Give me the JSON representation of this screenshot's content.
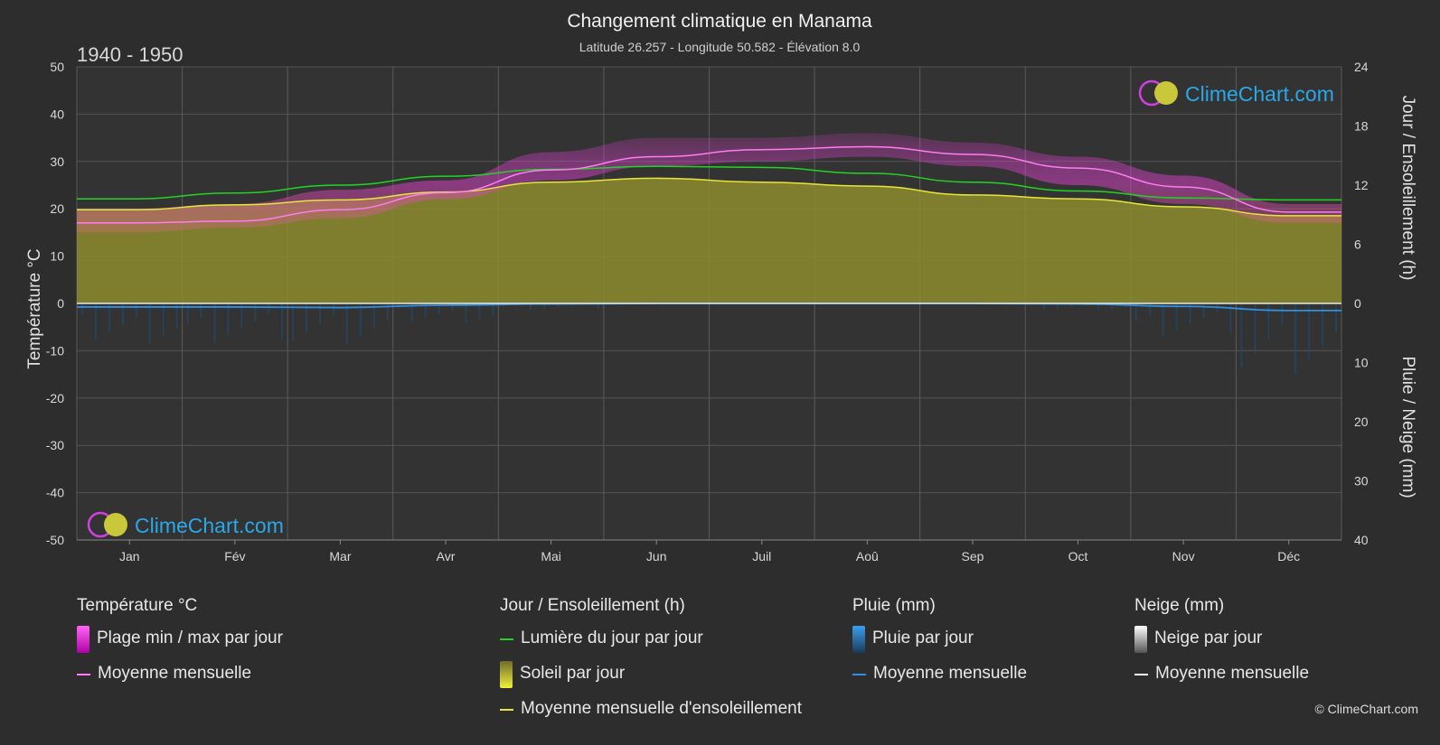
{
  "chart_data": {
    "type": "area",
    "title": "Changement climatique en Manama",
    "subtitle": "Latitude 26.257 - Longitude 50.582 - Élévation 8.0",
    "period": "1940 - 1950",
    "months": [
      "Jan",
      "Fév",
      "Mar",
      "Avr",
      "Mai",
      "Jun",
      "Juil",
      "Aoû",
      "Sep",
      "Oct",
      "Nov",
      "Déc"
    ],
    "left_axis": {
      "label": "Température °C",
      "ylim": [
        -50,
        50
      ],
      "ticks": [
        "50",
        "40",
        "30",
        "20",
        "10",
        "0",
        "-10",
        "-20",
        "-30",
        "-40",
        "-50"
      ]
    },
    "right_axis_top": {
      "label": "Jour / Ensoleillement (h)",
      "ylim": [
        0,
        24
      ],
      "ticks": [
        "24",
        "18",
        "12",
        "6",
        "0"
      ]
    },
    "right_axis_bottom": {
      "label": "Pluie / Neige (mm)",
      "ylim": [
        0,
        40
      ],
      "ticks": [
        "10",
        "20",
        "30",
        "40"
      ]
    },
    "series": [
      {
        "name": "Lumière du jour par jour",
        "axis": "sun_h",
        "color": "#22d422",
        "values": [
          10.6,
          11.2,
          12.0,
          12.9,
          13.6,
          13.9,
          13.8,
          13.2,
          12.3,
          11.4,
          10.7,
          10.5
        ]
      },
      {
        "name": "Moyenne mensuelle d'ensoleillement",
        "axis": "sun_h",
        "color": "#e6e63a",
        "values": [
          9.5,
          10.0,
          10.5,
          11.3,
          12.3,
          12.7,
          12.3,
          11.9,
          11.0,
          10.6,
          9.8,
          8.9
        ]
      },
      {
        "name": "Moyenne mensuelle",
        "group": "Température °C",
        "axis": "temp_c",
        "color": "#ff7cf0",
        "values": [
          17.0,
          17.4,
          19.8,
          23.4,
          28.2,
          31.0,
          32.5,
          33.1,
          31.5,
          28.6,
          24.6,
          19.3
        ]
      },
      {
        "name": "Moyenne mensuelle",
        "group": "Pluie (mm)",
        "axis": "rain_mm",
        "color": "#2f8fe0",
        "values": [
          0.6,
          0.6,
          0.7,
          0.3,
          0.1,
          0.0,
          0.0,
          0.0,
          0.0,
          0.1,
          0.5,
          1.2
        ]
      }
    ],
    "temp_range": {
      "name": "Plage min / max par jour",
      "min": [
        15,
        16,
        18,
        22,
        26,
        29,
        30,
        31,
        29,
        25,
        21,
        17
      ],
      "max": [
        20,
        21,
        24,
        26,
        32,
        35,
        35,
        36,
        34,
        31,
        27,
        21
      ]
    },
    "grid": true
  },
  "legend": {
    "temperature": {
      "title": "Température °C",
      "range": "Plage min / max par jour",
      "mean": "Moyenne mensuelle"
    },
    "sun": {
      "title": "Jour / Ensoleillement (h)",
      "daylight": "Lumière du jour par jour",
      "sun": "Soleil par jour",
      "mean": "Moyenne mensuelle d'ensoleillement"
    },
    "rain": {
      "title": "Pluie (mm)",
      "daily": "Pluie par jour",
      "mean": "Moyenne mensuelle"
    },
    "snow": {
      "title": "Neige (mm)",
      "daily": "Neige par jour",
      "mean": "Moyenne mensuelle"
    }
  },
  "brand": {
    "name": "ClimeChart.com",
    "copyright": "© ClimeChart.com"
  },
  "colors": {
    "background": "#2d2d2d",
    "daylight": "#22d422",
    "sun": "#e6e63a",
    "sun_fill": "#8c8c2e",
    "temp_range": "#e040d0",
    "temp_mean": "#ff7cf0",
    "rain": "#2f8fe0",
    "snow": "#ffffff",
    "brand": "#2aa8e8"
  }
}
